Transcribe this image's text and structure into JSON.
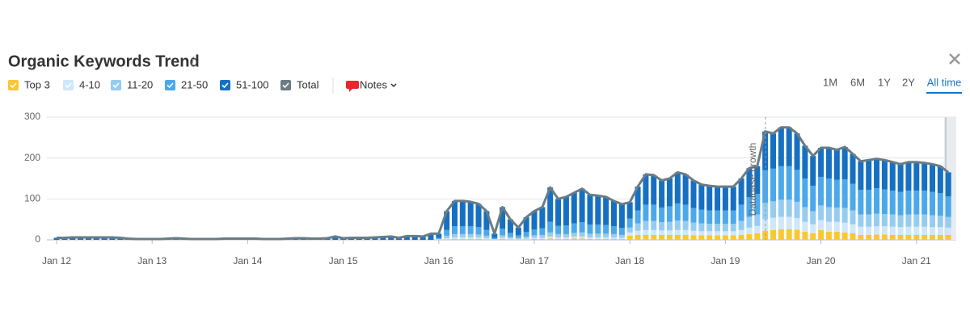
{
  "chart_data": {
    "type": "bar",
    "stacked": true,
    "title": "Organic Keywords Trend",
    "categories": [
      "Jan 12",
      null,
      null,
      null,
      null,
      null,
      null,
      null,
      null,
      null,
      null,
      null,
      "Jan 13",
      null,
      null,
      null,
      null,
      null,
      null,
      null,
      null,
      null,
      null,
      null,
      "Jan 14",
      null,
      null,
      null,
      null,
      null,
      null,
      null,
      null,
      null,
      null,
      null,
      "Jan 15",
      null,
      null,
      null,
      null,
      null,
      null,
      null,
      null,
      null,
      null,
      null,
      "Jan 16",
      null,
      null,
      null,
      null,
      null,
      null,
      null,
      null,
      null,
      null,
      null,
      "Jan 17",
      null,
      null,
      null,
      null,
      null,
      null,
      null,
      null,
      null,
      null,
      null,
      "Jan 18",
      null,
      null,
      null,
      null,
      null,
      null,
      null,
      null,
      null,
      null,
      null,
      "Jan 19",
      null,
      null,
      null,
      null,
      null,
      null,
      null,
      null,
      null,
      null,
      null,
      "Jan 20",
      null,
      null,
      null,
      null,
      null,
      null,
      null,
      null,
      null,
      null,
      null,
      "Jan 21",
      null,
      null,
      null,
      null
    ],
    "series": [
      {
        "name": "Top 3",
        "color": "#f9c734",
        "values": [
          0,
          0,
          0,
          0,
          0,
          0,
          0,
          0,
          0,
          0,
          0,
          0,
          0,
          0,
          0,
          0,
          0,
          0,
          0,
          0,
          0,
          0,
          0,
          0,
          0,
          0,
          0,
          0,
          0,
          0,
          0,
          0,
          0,
          0,
          0,
          0,
          0,
          0,
          0,
          0,
          0,
          0,
          0,
          0,
          0,
          0,
          0,
          0,
          0,
          1,
          2,
          2,
          2,
          2,
          1,
          0,
          2,
          1,
          1,
          1,
          2,
          2,
          3,
          2,
          2,
          3,
          3,
          2,
          2,
          2,
          2,
          2,
          10,
          12,
          12,
          12,
          12,
          12,
          12,
          12,
          11,
          11,
          11,
          11,
          11,
          11,
          12,
          14,
          16,
          22,
          24,
          26,
          26,
          25,
          20,
          16,
          24,
          20,
          20,
          18,
          16,
          12,
          12,
          13,
          13,
          12,
          12,
          12,
          12,
          12,
          12,
          12,
          12
        ]
      },
      {
        "name": "4-10",
        "color": "#cfe7f8",
        "values": [
          0,
          0,
          0,
          0,
          0,
          0,
          0,
          0,
          0,
          0,
          0,
          0,
          0,
          0,
          0,
          0,
          0,
          0,
          0,
          0,
          0,
          0,
          0,
          0,
          0,
          0,
          0,
          0,
          0,
          0,
          0,
          0,
          0,
          0,
          0,
          0,
          0,
          0,
          0,
          0,
          0,
          0,
          0,
          0,
          0,
          0,
          0,
          0,
          1,
          3,
          4,
          4,
          4,
          4,
          3,
          1,
          3,
          2,
          1,
          2,
          3,
          3,
          5,
          4,
          4,
          5,
          5,
          4,
          4,
          4,
          4,
          3,
          8,
          10,
          12,
          12,
          11,
          11,
          12,
          12,
          11,
          10,
          10,
          10,
          10,
          10,
          12,
          16,
          18,
          28,
          30,
          30,
          30,
          28,
          24,
          22,
          24,
          24,
          24,
          24,
          22,
          20,
          20,
          20,
          20,
          20,
          19,
          20,
          20,
          20,
          19,
          19,
          18
        ]
      },
      {
        "name": "11-20",
        "color": "#96ccf0",
        "values": [
          0,
          0,
          0,
          0,
          0,
          0,
          0,
          0,
          0,
          0,
          0,
          0,
          0,
          0,
          0,
          0,
          0,
          0,
          0,
          0,
          0,
          0,
          0,
          0,
          0,
          0,
          0,
          0,
          0,
          0,
          0,
          0,
          0,
          0,
          0,
          0,
          0,
          0,
          0,
          0,
          0,
          0,
          0,
          0,
          0,
          0,
          0,
          0,
          1,
          6,
          8,
          8,
          8,
          7,
          6,
          1,
          6,
          4,
          3,
          5,
          6,
          7,
          10,
          8,
          8,
          9,
          10,
          9,
          9,
          9,
          8,
          7,
          12,
          18,
          22,
          22,
          20,
          21,
          23,
          22,
          20,
          19,
          18,
          18,
          18,
          18,
          22,
          26,
          28,
          40,
          40,
          42,
          42,
          40,
          36,
          32,
          36,
          36,
          35,
          36,
          34,
          30,
          30,
          31,
          30,
          30,
          29,
          30,
          30,
          30,
          29,
          28,
          26
        ]
      },
      {
        "name": "21-50",
        "color": "#4ba8eb",
        "values": [
          0,
          0,
          0,
          0,
          0,
          0,
          0,
          0,
          0,
          0,
          0,
          0,
          0,
          0,
          0,
          0,
          0,
          0,
          0,
          0,
          0,
          0,
          0,
          0,
          0,
          0,
          0,
          0,
          0,
          0,
          0,
          0,
          0,
          0,
          0,
          0,
          0,
          0,
          0,
          0,
          0,
          0,
          0,
          0,
          0,
          0,
          0,
          0,
          3,
          14,
          19,
          19,
          19,
          18,
          14,
          3,
          16,
          10,
          6,
          11,
          14,
          16,
          26,
          20,
          21,
          23,
          25,
          22,
          22,
          21,
          19,
          17,
          22,
          32,
          40,
          40,
          36,
          38,
          42,
          40,
          36,
          34,
          33,
          33,
          33,
          33,
          40,
          48,
          50,
          80,
          80,
          82,
          82,
          78,
          70,
          62,
          70,
          70,
          68,
          70,
          65,
          60,
          60,
          62,
          60,
          58,
          57,
          58,
          58,
          58,
          57,
          55,
          50
        ]
      },
      {
        "name": "51-100",
        "color": "#1670c2",
        "values": [
          5,
          5,
          6,
          6,
          6,
          6,
          6,
          6,
          5,
          3,
          2,
          2,
          2,
          2,
          3,
          4,
          3,
          2,
          2,
          2,
          2,
          3,
          3,
          3,
          3,
          3,
          2,
          2,
          2,
          3,
          4,
          4,
          3,
          3,
          4,
          8,
          4,
          5,
          5,
          5,
          6,
          7,
          8,
          5,
          9,
          9,
          8,
          15,
          10,
          46,
          62,
          62,
          60,
          57,
          46,
          10,
          53,
          33,
          19,
          36,
          45,
          52,
          84,
          66,
          70,
          75,
          82,
          73,
          71,
          69,
          62,
          58,
          40,
          58,
          74,
          72,
          66,
          68,
          76,
          74,
          67,
          61,
          60,
          58,
          58,
          58,
          64,
          71,
          68,
          95,
          86,
          95,
          95,
          89,
          80,
          73,
          71,
          75,
          73,
          79,
          73,
          70,
          73,
          72,
          72,
          70,
          68,
          70,
          70,
          68,
          68,
          66,
          59
        ]
      },
      {
        "name": "Total",
        "color": "#6b7c84",
        "type": "line",
        "values": [
          5,
          5,
          6,
          6,
          6,
          6,
          6,
          6,
          5,
          3,
          2,
          2,
          2,
          2,
          3,
          4,
          3,
          2,
          2,
          2,
          2,
          3,
          3,
          3,
          3,
          3,
          2,
          2,
          2,
          3,
          4,
          4,
          3,
          3,
          4,
          8,
          4,
          5,
          5,
          5,
          6,
          7,
          8,
          5,
          9,
          9,
          8,
          15,
          15,
          70,
          95,
          95,
          93,
          88,
          70,
          15,
          80,
          50,
          30,
          55,
          70,
          80,
          128,
          100,
          105,
          115,
          125,
          110,
          108,
          105,
          95,
          87,
          92,
          130,
          160,
          158,
          145,
          150,
          165,
          160,
          145,
          135,
          132,
          130,
          130,
          130,
          150,
          175,
          180,
          265,
          260,
          275,
          275,
          260,
          230,
          205,
          225,
          225,
          220,
          227,
          210,
          192,
          195,
          198,
          195,
          190,
          185,
          190,
          190,
          188,
          185,
          180,
          165
        ]
      }
    ],
    "ylim": [
      0,
      300
    ],
    "yticks": [
      0,
      100,
      200,
      300
    ],
    "grid": true,
    "annotation": "Database growth"
  },
  "controls": {
    "notes": "Notes",
    "ranges": [
      "1M",
      "6M",
      "1Y",
      "2Y",
      "All time"
    ],
    "active_range": "All time"
  }
}
